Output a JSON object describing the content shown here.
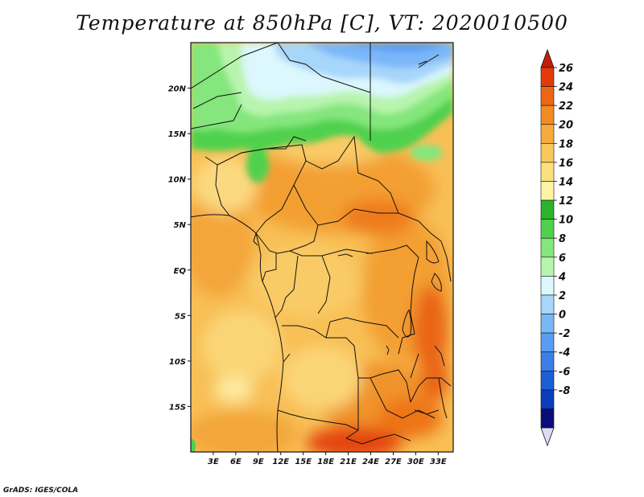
{
  "title": "Temperature at 850hPa [C], VT: 2020010500",
  "credit": "GrADS: IGES/COLA",
  "map": {
    "variable": "Temperature at 850hPa",
    "units": "C",
    "valid_time": "2020010500",
    "lon_range": [
      0,
      35
    ],
    "lat_range": [
      -20,
      25
    ],
    "lat_ticks": [
      {
        "label": "20N",
        "value": 20
      },
      {
        "label": "15N",
        "value": 15
      },
      {
        "label": "10N",
        "value": 10
      },
      {
        "label": "5N",
        "value": 5
      },
      {
        "label": "EQ",
        "value": 0
      },
      {
        "label": "5S",
        "value": -5
      },
      {
        "label": "10S",
        "value": -10
      },
      {
        "label": "15S",
        "value": -15
      }
    ],
    "lon_ticks": [
      {
        "label": "3E",
        "value": 3
      },
      {
        "label": "6E",
        "value": 6
      },
      {
        "label": "9E",
        "value": 9
      },
      {
        "label": "12E",
        "value": 12
      },
      {
        "label": "15E",
        "value": 15
      },
      {
        "label": "18E",
        "value": 18
      },
      {
        "label": "21E",
        "value": 21
      },
      {
        "label": "24E",
        "value": 24
      },
      {
        "label": "27E",
        "value": 27
      },
      {
        "label": "30E",
        "value": 30
      },
      {
        "label": "33E",
        "value": 33
      }
    ]
  },
  "colorbar": {
    "labels": [
      "26",
      "24",
      "22",
      "20",
      "18",
      "16",
      "14",
      "12",
      "10",
      "8",
      "6",
      "4",
      "2",
      "0",
      "-2",
      "-4",
      "-6",
      "-8"
    ],
    "colors": [
      "#dddcf7",
      "#0c0d7a",
      "#0a3dbe",
      "#1c5ed6",
      "#3c7ee8",
      "#5a9cf3",
      "#7ab7f8",
      "#a7d6fb",
      "#dcf7fd",
      "#b8f4ae",
      "#84e67c",
      "#4fd14e",
      "#2bb42b",
      "#fdf4a6",
      "#fbe07e",
      "#f9c85a",
      "#f5ab3d",
      "#f18c22",
      "#ed6712",
      "#e23b09",
      "#c51e08"
    ]
  }
}
